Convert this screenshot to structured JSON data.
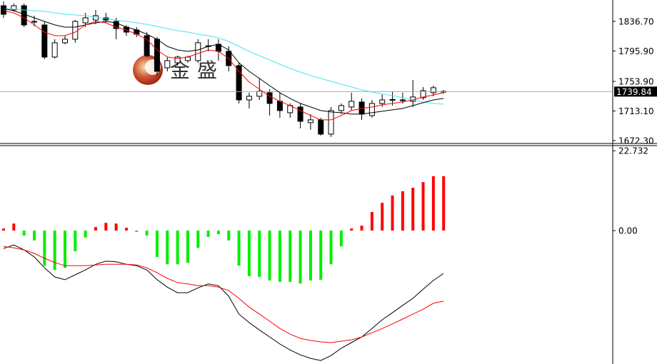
{
  "chart_data": [
    {
      "type": "candlestick",
      "watermark": "金盛",
      "up_color": "#ffffff",
      "down_color": "#000000",
      "open": [
        1858.3,
        1852.4,
        1858.3,
        1836.7,
        1831.8,
        1787.5,
        1807.2,
        1812.1,
        1834.7,
        1838.6,
        1841.6,
        1836.7,
        1828.8,
        1824.9,
        1817.0,
        1812.1,
        1772.7,
        1779.6,
        1782.6,
        1782.6,
        1802.2,
        1805.2,
        1795.4,
        1775.7,
        1728.4,
        1733.4,
        1738.3,
        1726.5,
        1710.7,
        1718.6,
        1697.0,
        1700.9,
        1681.2,
        1713.7,
        1718.6,
        1725.5,
        1706.8,
        1723.5,
        1728.4,
        1728.4,
        1726.5,
        1731.4,
        1738.3,
        1740.2
      ],
      "high": [
        1864.2,
        1861.3,
        1861.3,
        1844.6,
        1836.7,
        1812.1,
        1817.0,
        1838.6,
        1848.5,
        1852.4,
        1848.5,
        1841.6,
        1831.8,
        1828.8,
        1821.9,
        1815.0,
        1787.5,
        1789.4,
        1789.4,
        1812.1,
        1812.1,
        1812.1,
        1802.2,
        1779.6,
        1738.3,
        1758.0,
        1743.2,
        1738.3,
        1723.5,
        1723.5,
        1708.8,
        1703.8,
        1718.6,
        1723.5,
        1738.3,
        1730.4,
        1728.4,
        1736.3,
        1740.2,
        1738.3,
        1756.0,
        1746.2,
        1748.1,
        1742.2
      ],
      "low": [
        1841.6,
        1850.5,
        1828.8,
        1829.8,
        1784.5,
        1785.5,
        1805.2,
        1807.2,
        1828.8,
        1832.7,
        1834.7,
        1812.1,
        1817.0,
        1815.0,
        1787.5,
        1762.9,
        1767.8,
        1775.7,
        1779.6,
        1779.6,
        1795.4,
        1782.6,
        1767.8,
        1723.5,
        1716.6,
        1728.4,
        1706.8,
        1703.8,
        1703.8,
        1689.1,
        1687.1,
        1679.2,
        1677.3,
        1708.8,
        1713.7,
        1700.9,
        1703.8,
        1718.6,
        1720.6,
        1723.5,
        1718.6,
        1728.4,
        1733.4,
        1737.3
      ],
      "close": [
        1846.5,
        1858.3,
        1831.8,
        1836.0,
        1787.5,
        1807.2,
        1812.1,
        1836.7,
        1841.6,
        1844.6,
        1838.6,
        1826.8,
        1821.9,
        1819.0,
        1789.4,
        1767.8,
        1782.6,
        1787.5,
        1787.5,
        1807.2,
        1803.0,
        1795.4,
        1775.7,
        1728.4,
        1733.4,
        1740.2,
        1723.5,
        1713.7,
        1720.6,
        1698.9,
        1700.9,
        1681.2,
        1713.7,
        1720.6,
        1726.5,
        1708.8,
        1723.5,
        1728.4,
        1728.9,
        1728.0,
        1732.4,
        1741.2,
        1745.2,
        1739.84
      ],
      "series": [
        {
          "color": "#40e8f0",
          "values": [
            1854.4,
            1853.4,
            1852.4,
            1851.4,
            1850.5,
            1848.5,
            1846.5,
            1845.5,
            1844.6,
            1842.6,
            1840.6,
            1838.6,
            1836.7,
            1834.7,
            1832.7,
            1829.8,
            1826.8,
            1823.9,
            1821.9,
            1819.0,
            1817.0,
            1814.0,
            1809.1,
            1802.2,
            1795.4,
            1789.4,
            1783.5,
            1777.6,
            1771.7,
            1766.8,
            1761.9,
            1758.0,
            1754.0,
            1750.1,
            1746.2,
            1742.2,
            1739.3,
            1736.3,
            1734.3,
            1731.4,
            1728.4,
            1725.5,
            1723.5,
            1722.5
          ]
        },
        {
          "color": "#000000",
          "values": [
            1854.4,
            1851.4,
            1846.5,
            1841.6,
            1836.7,
            1831.8,
            1828.8,
            1828.8,
            1831.8,
            1834.7,
            1836.7,
            1834.7,
            1828.8,
            1824.9,
            1819.0,
            1812.1,
            1802.2,
            1797.3,
            1795.4,
            1797.3,
            1802.2,
            1805.2,
            1797.3,
            1779.6,
            1767.8,
            1758.0,
            1748.1,
            1738.3,
            1730.4,
            1723.5,
            1718.6,
            1713.7,
            1711.7,
            1710.7,
            1708.8,
            1708.8,
            1710.7,
            1712.7,
            1714.7,
            1716.6,
            1720.6,
            1724.5,
            1728.4,
            1730.4
          ]
        },
        {
          "color": "#ff0000",
          "values": [
            1851.4,
            1848.5,
            1841.6,
            1831.8,
            1821.9,
            1817.0,
            1817.0,
            1821.9,
            1831.8,
            1836.7,
            1834.7,
            1828.8,
            1824.9,
            1819.0,
            1812.1,
            1797.3,
            1787.5,
            1785.5,
            1787.5,
            1792.4,
            1797.3,
            1795.4,
            1785.5,
            1767.8,
            1753.0,
            1743.2,
            1733.4,
            1726.5,
            1720.6,
            1713.7,
            1706.8,
            1700.9,
            1700.9,
            1706.8,
            1713.7,
            1716.6,
            1718.6,
            1721.6,
            1723.5,
            1725.5,
            1728.4,
            1732.4,
            1735.3,
            1738.3
          ]
        }
      ],
      "ylim": [
        1669.3,
        1866.2
      ],
      "yticks": [
        {
          "value": 1836.7,
          "label": "1836.70"
        },
        {
          "value": 1795.9,
          "label": "1795.90"
        },
        {
          "value": 1753.9,
          "label": "1753.90"
        },
        {
          "value": 1713.1,
          "label": "1713.10"
        },
        {
          "value": 1672.3,
          "label": "1672.30"
        }
      ]
    },
    {
      "type": "macd",
      "up_color": "#ff0000",
      "down_color": "#00ee00",
      "values": [
        0.6,
        2.0,
        -1.4,
        -2.8,
        -10.0,
        -11.2,
        -10.6,
        -5.9,
        -2.0,
        1.0,
        2.2,
        2.0,
        0.8,
        -0.4,
        -1.4,
        -7.5,
        -9.6,
        -9.6,
        -9.2,
        -4.9,
        -1.8,
        -1.0,
        -2.8,
        -10.0,
        -13.0,
        -13.2,
        -14.2,
        -14.6,
        -14.6,
        -15.1,
        -14.2,
        -14.0,
        -9.6,
        -4.5,
        0.6,
        1.4,
        5.3,
        7.9,
        10.0,
        11.2,
        12.2,
        13.8,
        15.5,
        15.5
      ],
      "series": [
        {
          "color": "#000000",
          "values": [
            -5.1,
            -4.1,
            -5.5,
            -7.5,
            -10.6,
            -13.2,
            -14.0,
            -12.6,
            -11.2,
            -9.6,
            -8.7,
            -8.9,
            -9.6,
            -10.0,
            -11.2,
            -14.0,
            -16.1,
            -17.7,
            -17.7,
            -16.3,
            -15.2,
            -15.7,
            -18.7,
            -23.8,
            -26.2,
            -28.3,
            -30.3,
            -32.3,
            -34.0,
            -35.4,
            -36.4,
            -37.0,
            -35.6,
            -33.5,
            -31.9,
            -30.3,
            -27.9,
            -25.4,
            -23.4,
            -21.3,
            -19.3,
            -16.7,
            -14.2,
            -12.2
          ]
        },
        {
          "color": "#ff0000",
          "values": [
            -4.5,
            -4.9,
            -5.5,
            -6.5,
            -7.9,
            -9.1,
            -10.0,
            -10.0,
            -10.0,
            -9.8,
            -9.6,
            -9.6,
            -9.6,
            -9.8,
            -10.6,
            -12.0,
            -13.6,
            -14.8,
            -15.2,
            -15.7,
            -15.7,
            -16.1,
            -17.1,
            -19.3,
            -21.8,
            -23.8,
            -25.8,
            -27.9,
            -29.5,
            -30.7,
            -31.3,
            -31.7,
            -31.9,
            -31.5,
            -31.1,
            -30.3,
            -29.1,
            -27.9,
            -26.6,
            -25.2,
            -23.8,
            -22.4,
            -20.7,
            -20.1
          ]
        }
      ],
      "ylim": [
        -38,
        24
      ],
      "yticks": [
        22.732,
        {
          "value": 0,
          "label": "0.00"
        }
      ]
    }
  ]
}
